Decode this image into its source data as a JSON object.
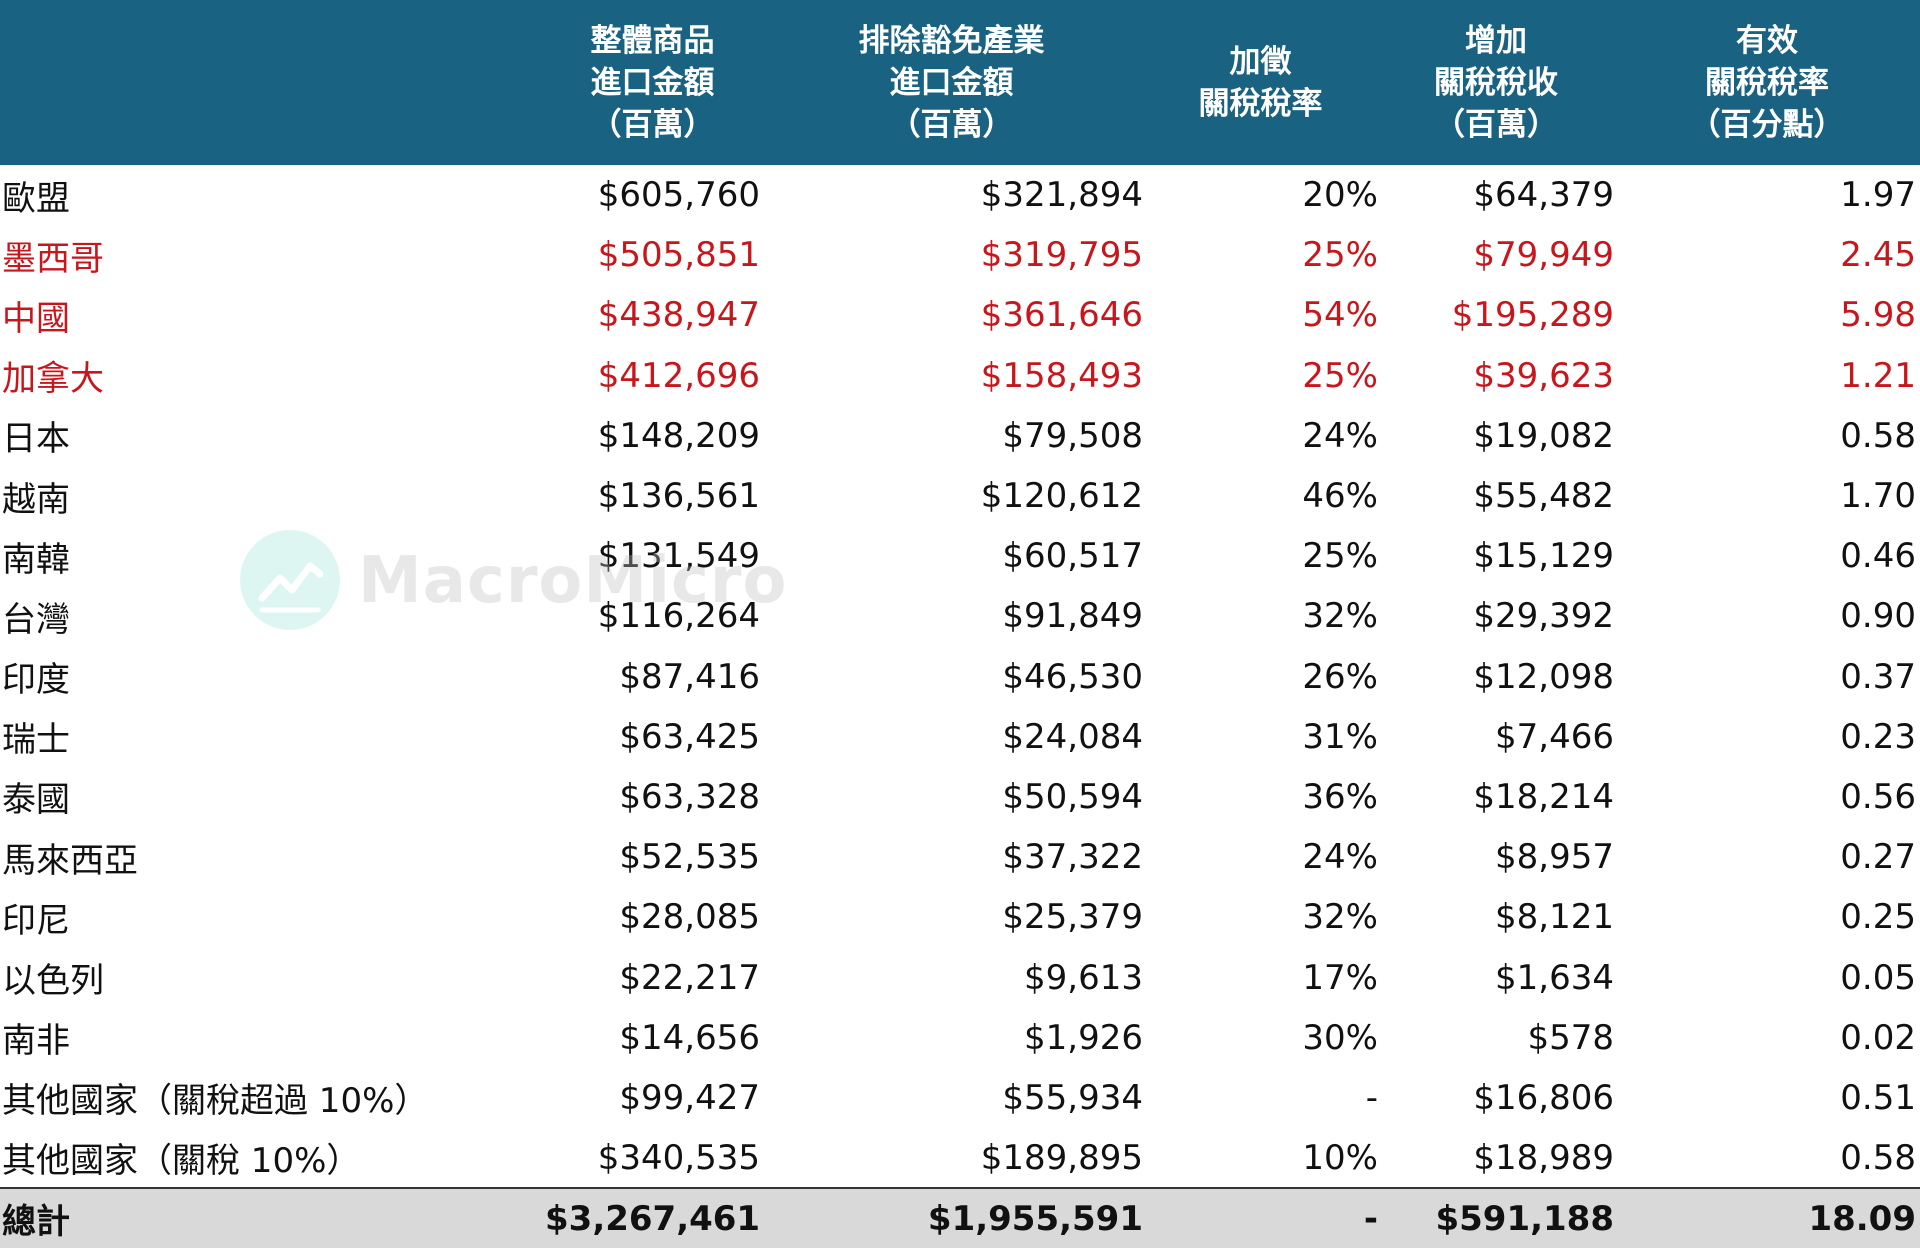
{
  "header": {
    "columns": [
      {
        "lines": ""
      },
      {
        "lines": "整體商品\n進口金額\n（百萬）"
      },
      {
        "lines": "排除豁免產業\n進口金額\n（百萬）"
      },
      {
        "lines": "加徵\n關稅稅率"
      },
      {
        "lines": "增加\n關稅稅收\n（百萬）"
      },
      {
        "lines": "有效\n關稅稅率\n（百分點）"
      }
    ]
  },
  "rows": [
    {
      "name": "歐盟",
      "total_imports": "$605,760",
      "non_exempt_imports": "$321,894",
      "tariff_rate": "20%",
      "added_revenue": "$64,379",
      "effective_rate": "1.97",
      "highlight": false
    },
    {
      "name": "墨西哥",
      "total_imports": "$505,851",
      "non_exempt_imports": "$319,795",
      "tariff_rate": "25%",
      "added_revenue": "$79,949",
      "effective_rate": "2.45",
      "highlight": true
    },
    {
      "name": "中國",
      "total_imports": "$438,947",
      "non_exempt_imports": "$361,646",
      "tariff_rate": "54%",
      "added_revenue": "$195,289",
      "effective_rate": "5.98",
      "highlight": true
    },
    {
      "name": "加拿大",
      "total_imports": "$412,696",
      "non_exempt_imports": "$158,493",
      "tariff_rate": "25%",
      "added_revenue": "$39,623",
      "effective_rate": "1.21",
      "highlight": true
    },
    {
      "name": "日本",
      "total_imports": "$148,209",
      "non_exempt_imports": "$79,508",
      "tariff_rate": "24%",
      "added_revenue": "$19,082",
      "effective_rate": "0.58",
      "highlight": false
    },
    {
      "name": "越南",
      "total_imports": "$136,561",
      "non_exempt_imports": "$120,612",
      "tariff_rate": "46%",
      "added_revenue": "$55,482",
      "effective_rate": "1.70",
      "highlight": false
    },
    {
      "name": "南韓",
      "total_imports": "$131,549",
      "non_exempt_imports": "$60,517",
      "tariff_rate": "25%",
      "added_revenue": "$15,129",
      "effective_rate": "0.46",
      "highlight": false
    },
    {
      "name": "台灣",
      "total_imports": "$116,264",
      "non_exempt_imports": "$91,849",
      "tariff_rate": "32%",
      "added_revenue": "$29,392",
      "effective_rate": "0.90",
      "highlight": false
    },
    {
      "name": "印度",
      "total_imports": "$87,416",
      "non_exempt_imports": "$46,530",
      "tariff_rate": "26%",
      "added_revenue": "$12,098",
      "effective_rate": "0.37",
      "highlight": false
    },
    {
      "name": "瑞士",
      "total_imports": "$63,425",
      "non_exempt_imports": "$24,084",
      "tariff_rate": "31%",
      "added_revenue": "$7,466",
      "effective_rate": "0.23",
      "highlight": false
    },
    {
      "name": "泰國",
      "total_imports": "$63,328",
      "non_exempt_imports": "$50,594",
      "tariff_rate": "36%",
      "added_revenue": "$18,214",
      "effective_rate": "0.56",
      "highlight": false
    },
    {
      "name": "馬來西亞",
      "total_imports": "$52,535",
      "non_exempt_imports": "$37,322",
      "tariff_rate": "24%",
      "added_revenue": "$8,957",
      "effective_rate": "0.27",
      "highlight": false
    },
    {
      "name": "印尼",
      "total_imports": "$28,085",
      "non_exempt_imports": "$25,379",
      "tariff_rate": "32%",
      "added_revenue": "$8,121",
      "effective_rate": "0.25",
      "highlight": false
    },
    {
      "name": "以色列",
      "total_imports": "$22,217",
      "non_exempt_imports": "$9,613",
      "tariff_rate": "17%",
      "added_revenue": "$1,634",
      "effective_rate": "0.05",
      "highlight": false
    },
    {
      "name": "南非",
      "total_imports": "$14,656",
      "non_exempt_imports": "$1,926",
      "tariff_rate": "30%",
      "added_revenue": "$578",
      "effective_rate": "0.02",
      "highlight": false
    },
    {
      "name": "其他國家（關稅超過 10%）",
      "total_imports": "$99,427",
      "non_exempt_imports": "$55,934",
      "tariff_rate": "-",
      "added_revenue": "$16,806",
      "effective_rate": "0.51",
      "highlight": false
    },
    {
      "name": "其他國家（關稅 10%）",
      "total_imports": "$340,535",
      "non_exempt_imports": "$189,895",
      "tariff_rate": "10%",
      "added_revenue": "$18,989",
      "effective_rate": "0.58",
      "highlight": false
    }
  ],
  "total": {
    "name": "總計",
    "total_imports": "$3,267,461",
    "non_exempt_imports": "$1,955,591",
    "tariff_rate": "-",
    "added_revenue": "$591,188",
    "effective_rate": "18.09"
  },
  "colors": {
    "header_bg": "#1a6282",
    "header_text": "#ffffff",
    "highlight_text": "#c8161d",
    "total_bg": "#d9d9d9"
  },
  "watermark": {
    "text": "MacroMicro",
    "icon": "macromicro-logo-icon"
  }
}
